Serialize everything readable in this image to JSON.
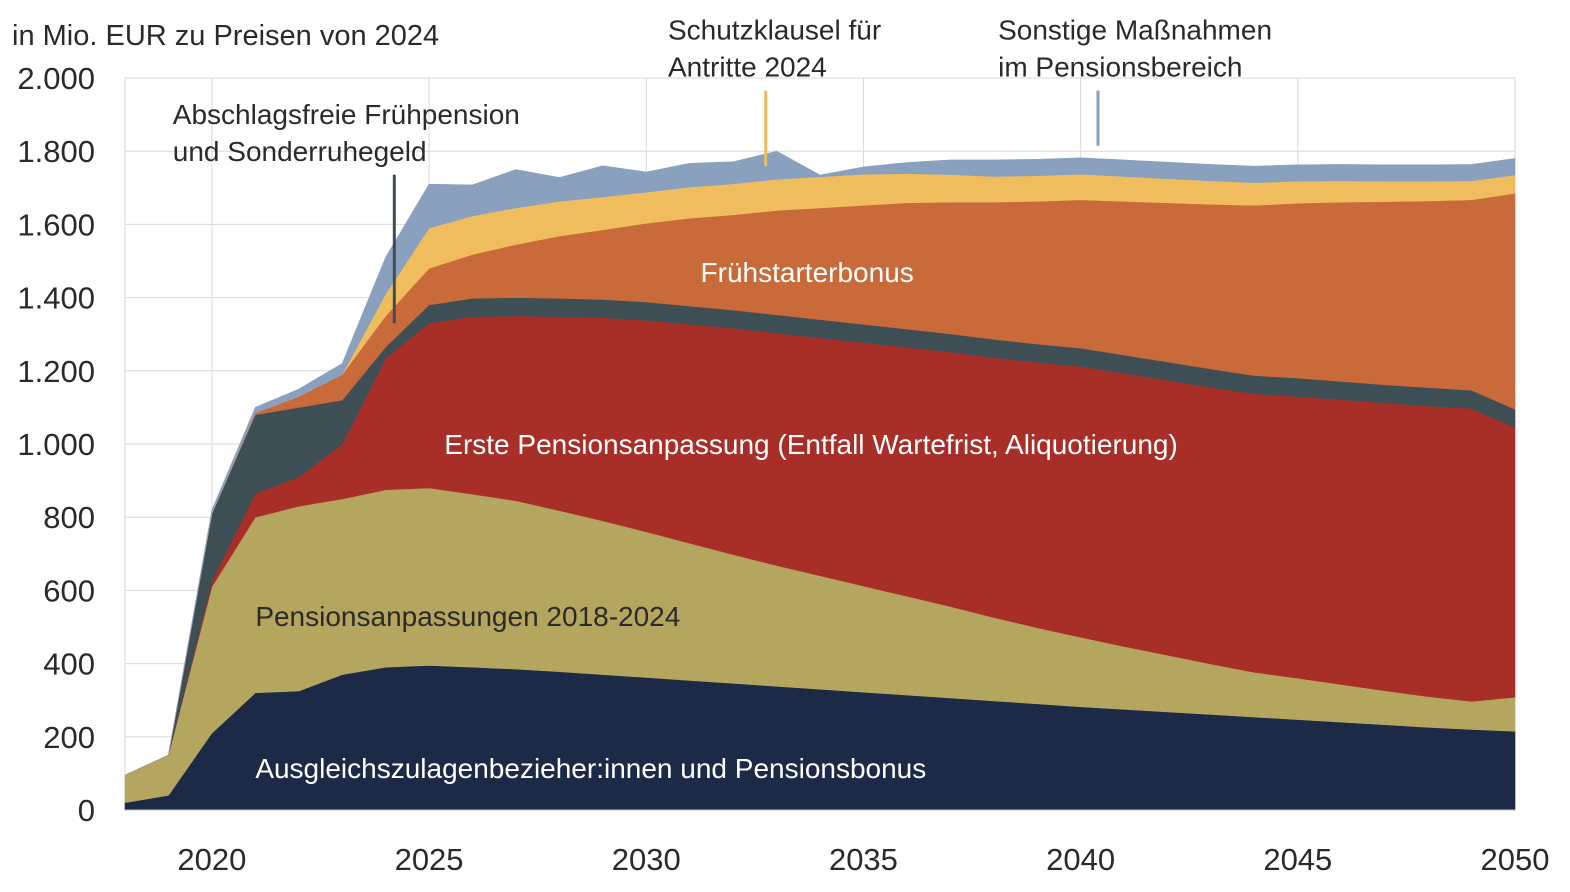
{
  "chart_data": {
    "type": "area",
    "stacked": true,
    "unit_label": "in Mio. EUR zu Preisen von 2024",
    "xlim": [
      2018,
      2050
    ],
    "ylim": [
      0,
      2000
    ],
    "grid": true,
    "y_ticks": [
      0,
      200,
      400,
      600,
      800,
      1000,
      1200,
      1400,
      1600,
      1800,
      2000
    ],
    "y_tick_labels": [
      "0",
      "200",
      "400",
      "600",
      "800",
      "1.000",
      "1.200",
      "1.400",
      "1.600",
      "1.800",
      "2.000"
    ],
    "x_ticks": [
      2020,
      2025,
      2030,
      2035,
      2040,
      2045,
      2050
    ],
    "x_tick_labels": [
      "2020",
      "2025",
      "2030",
      "2035",
      "2040",
      "2045",
      "2050"
    ],
    "x": [
      2018,
      2019,
      2020,
      2021,
      2022,
      2023,
      2024,
      2025,
      2026,
      2027,
      2028,
      2029,
      2030,
      2031,
      2032,
      2033,
      2034,
      2035,
      2036,
      2037,
      2038,
      2039,
      2040,
      2041,
      2042,
      2043,
      2044,
      2045,
      2046,
      2047,
      2048,
      2049,
      2050
    ],
    "series": [
      {
        "label": "Ausgleichszulagenbezieher:innen und Pensionsbonus",
        "color": "#1c2a48",
        "text_color": "#ffffff",
        "values": [
          20,
          40,
          210,
          320,
          325,
          370,
          390,
          395,
          390,
          385,
          378,
          370,
          362,
          354,
          346,
          338,
          330,
          322,
          314,
          306,
          298,
          290,
          282,
          275,
          268,
          261,
          254,
          247,
          240,
          233,
          226,
          220,
          215
        ]
      },
      {
        "label": "Pensionsanpassungen 2018-2024",
        "color": "#b5a65f",
        "text_color": "#2a2a2a",
        "values": [
          75,
          110,
          400,
          480,
          505,
          480,
          485,
          485,
          473,
          460,
          440,
          420,
          398,
          375,
          352,
          330,
          310,
          290,
          270,
          250,
          228,
          208,
          190,
          172,
          155,
          138,
          122,
          113,
          103,
          93,
          84,
          77,
          93
        ]
      },
      {
        "label": "Erste Pensionsanpassung (Entfall Wartefrist, Aliquotierung)",
        "color": "#a82f28",
        "text_color": "#ffffff",
        "values": [
          0,
          0,
          15,
          65,
          80,
          150,
          360,
          450,
          485,
          505,
          530,
          555,
          578,
          598,
          618,
          635,
          650,
          665,
          680,
          695,
          710,
          725,
          740,
          746,
          751,
          756,
          761,
          770,
          778,
          786,
          794,
          800,
          737
        ]
      },
      {
        "label": "Abschlagsfreie Frühpension und Sonderruhegeld",
        "color": "#3d4f54",
        "text_color": "#ffffff",
        "values": [
          0,
          0,
          185,
          215,
          190,
          120,
          30,
          50,
          50,
          50,
          50,
          50,
          50,
          50,
          50,
          50,
          50,
          50,
          50,
          50,
          50,
          50,
          50,
          50,
          50,
          50,
          50,
          50,
          50,
          50,
          50,
          50,
          50
        ]
      },
      {
        "label": "Frühstarterbonus",
        "color": "#c96a3a",
        "text_color": "#ffffff",
        "values": [
          0,
          0,
          0,
          5,
          30,
          70,
          85,
          100,
          120,
          145,
          170,
          190,
          215,
          240,
          260,
          285,
          305,
          325,
          345,
          360,
          375,
          390,
          405,
          420,
          435,
          450,
          465,
          478,
          490,
          500,
          510,
          520,
          590
        ]
      },
      {
        "label": "Schutzklausel für Antritte 2024",
        "color": "#f0bd5e",
        "text_color": "#2a2a2a",
        "values": [
          0,
          0,
          0,
          0,
          0,
          0,
          60,
          110,
          105,
          100,
          95,
          90,
          85,
          85,
          85,
          85,
          85,
          85,
          80,
          75,
          70,
          70,
          70,
          68,
          66,
          64,
          62,
          60,
          58,
          56,
          54,
          52,
          50
        ]
      },
      {
        "label": "Sonstige Maßnahmen im Pensionsbereich",
        "color": "#8aa0bf",
        "text_color": "#2a2a2a",
        "values": [
          0,
          0,
          10,
          15,
          20,
          30,
          100,
          120,
          85,
          105,
          65,
          85,
          55,
          65,
          60,
          77,
          5,
          20,
          30,
          40,
          45,
          45,
          45,
          45,
          45,
          45,
          45,
          45,
          45,
          45,
          45,
          45,
          45
        ]
      }
    ],
    "in_chart_labels": [
      {
        "series_index": 0,
        "text": "Ausgleichszulagenbezieher:innen und Pensionsbonus",
        "x": 2021,
        "y": 115
      },
      {
        "series_index": 1,
        "text": "Pensionsanpassungen 2018-2024",
        "x": 2021,
        "y": 530
      },
      {
        "series_index": 2,
        "text": "Erste Pensionsanpassung (Entfall Wartefrist, Aliquotierung)",
        "x": 2025.35,
        "y": 1000
      },
      {
        "series_index": 4,
        "text": "Frühstarterbonus",
        "x": 2031.25,
        "y": 1470
      }
    ],
    "callouts": [
      {
        "series_index": 3,
        "lines": [
          "Abschlagsfreie",
          "Frühpension",
          "und Sonderruhegeld"
        ],
        "text_lines": [
          "Abschlagsfreie Frühpension",
          "und Sonderruhegeld"
        ],
        "anchor": {
          "x": 2024.2,
          "y": 1330
        },
        "text_pos": {
          "x": 2019.1,
          "y": 1875
        }
      },
      {
        "series_index": 5,
        "text_lines": [
          "Schutzklausel für",
          "Antritte 2024"
        ],
        "anchor": {
          "x": 2032.75,
          "y": 1760
        },
        "text_pos": {
          "x": 2030.5,
          "y": 2105
        }
      },
      {
        "series_index": 6,
        "text_lines": [
          "Sonstige Maßnahmen",
          "im Pensionsbereich"
        ],
        "anchor": {
          "x": 2040.4,
          "y": 1815
        },
        "text_pos": {
          "x": 2038.1,
          "y": 2105
        }
      }
    ]
  }
}
